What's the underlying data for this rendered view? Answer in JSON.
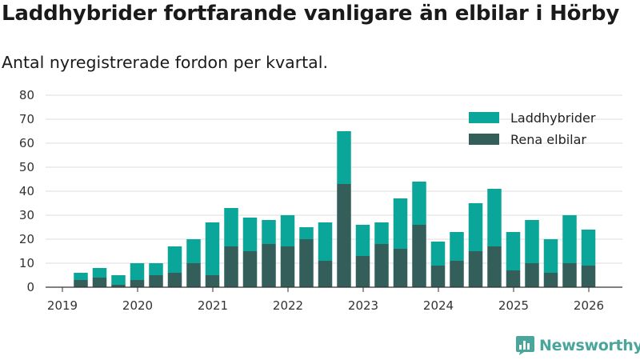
{
  "title": "Laddhybrider fortfarande vanligare än elbilar i Hörby",
  "subtitle": "Antal nyregistrerade fordon per kvartal.",
  "brand": "Newsworthy",
  "colors": {
    "hybrid": "#0ba69a",
    "electric": "#345e5a",
    "grid": "#dddddd",
    "axis": "#333333",
    "brand": "#4aa59a"
  },
  "chart_data": {
    "type": "bar",
    "stacked": true,
    "title": "Laddhybrider fortfarande vanligare än elbilar i Hörby",
    "subtitle": "Antal nyregistrerade fordon per kvartal.",
    "xlabel": "",
    "ylabel": "",
    "ylim": [
      0,
      80
    ],
    "yticks": [
      0,
      10,
      20,
      30,
      40,
      50,
      60,
      70,
      80
    ],
    "xticks": [
      "2019",
      "2020",
      "2021",
      "2022",
      "2023",
      "2024",
      "2025",
      "2026"
    ],
    "categories": [
      "2019 Q2",
      "2019 Q3",
      "2019 Q4",
      "2020 Q1",
      "2020 Q2",
      "2020 Q3",
      "2020 Q4",
      "2021 Q1",
      "2021 Q2",
      "2021 Q3",
      "2021 Q4",
      "2022 Q1",
      "2022 Q2",
      "2022 Q3",
      "2022 Q4",
      "2023 Q1",
      "2023 Q2",
      "2023 Q3",
      "2023 Q4",
      "2024 Q1",
      "2024 Q2",
      "2024 Q3",
      "2024 Q4",
      "2025 Q1",
      "2025 Q2",
      "2025 Q3",
      "2025 Q4",
      "2026 Q1"
    ],
    "legend_position": "top-right",
    "series": [
      {
        "name": "Rena elbilar",
        "color": "#345e5a",
        "values": [
          3,
          4,
          1,
          3,
          5,
          6,
          10,
          5,
          17,
          15,
          18,
          17,
          20,
          11,
          43,
          13,
          18,
          16,
          26,
          9,
          11,
          15,
          17,
          7,
          10,
          6,
          10,
          9
        ]
      },
      {
        "name": "Laddhybrider",
        "color": "#0ba69a",
        "values": [
          3,
          4,
          4,
          7,
          5,
          11,
          10,
          22,
          16,
          14,
          10,
          13,
          5,
          16,
          22,
          13,
          9,
          21,
          18,
          10,
          12,
          20,
          24,
          16,
          18,
          14,
          20,
          15
        ]
      }
    ]
  }
}
